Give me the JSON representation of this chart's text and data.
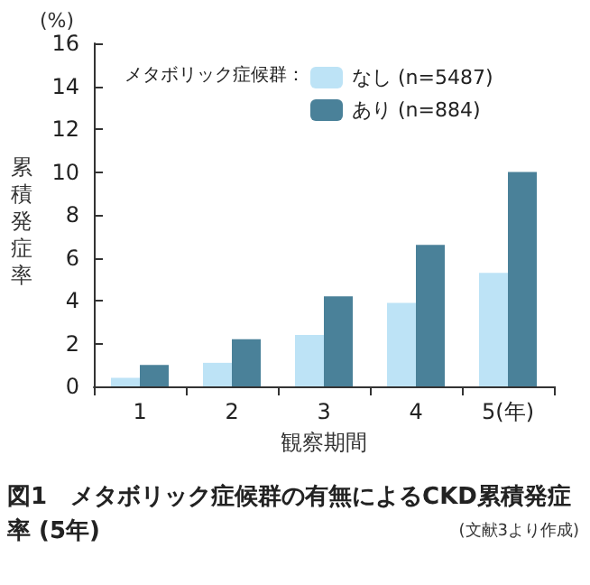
{
  "chart_data": {
    "type": "bar",
    "title": "図1　メタボリック症候群の有無によるCKD累積発症率 (5年)",
    "xlabel": "観察期間",
    "ylabel": "累積発症率",
    "legend_title": "メタボリック症候群：",
    "annotations": [
      "(%)",
      "(文献3より作成)"
    ],
    "categories": [
      "1",
      "2",
      "3",
      "4",
      "5(年)"
    ],
    "series": [
      {
        "name": "なし (n=5487)",
        "color": "#bde3f6",
        "values": [
          0.4,
          1.1,
          2.4,
          3.9,
          5.3
        ]
      },
      {
        "name": "あり (n=884)",
        "color": "#4a8199",
        "values": [
          1.0,
          2.2,
          4.2,
          6.6,
          10.0
        ]
      }
    ],
    "ylim": [
      0,
      16
    ],
    "yticks": [
      0,
      2,
      4,
      6,
      8,
      10,
      12,
      14,
      16
    ],
    "grid": false,
    "legend": "top right"
  }
}
